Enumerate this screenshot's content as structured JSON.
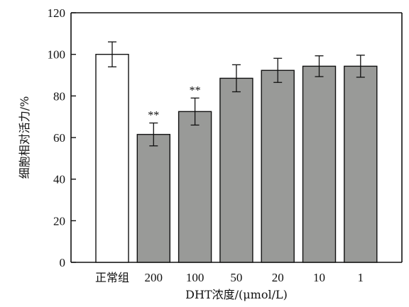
{
  "chart_data": {
    "type": "bar",
    "categories": [
      "正常组",
      "200",
      "100",
      "50",
      "20",
      "10",
      "1"
    ],
    "values": [
      100,
      61.5,
      72.5,
      88.5,
      92.3,
      94.3,
      94.3
    ],
    "errors": [
      6,
      5.5,
      6.5,
      6.5,
      5.8,
      5.0,
      5.3
    ],
    "significance": [
      "",
      "**",
      "**",
      "",
      "",
      "",
      ""
    ],
    "bar_colors": [
      "#ffffff",
      "#999a98",
      "#999a98",
      "#999a98",
      "#999a98",
      "#999a98",
      "#999a98"
    ],
    "xlabel": "DHT浓度/(μmol/L)",
    "ylabel": "细胞相对活力/%",
    "ylim": [
      0,
      120
    ],
    "yticks": [
      0,
      20,
      40,
      60,
      80,
      100,
      120
    ],
    "grid": false,
    "legend": "none"
  }
}
